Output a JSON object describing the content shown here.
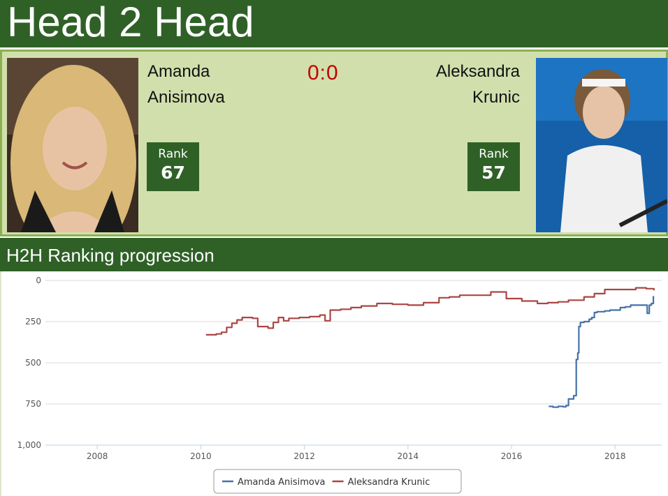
{
  "header": {
    "title": "Head 2 Head"
  },
  "players": {
    "left": {
      "first_name": "Amanda",
      "last_name": "Anisimova",
      "rank_label": "Rank",
      "rank": "67"
    },
    "right": {
      "first_name": "Aleksandra",
      "last_name": "Krunic",
      "rank_label": "Rank",
      "rank": "57"
    }
  },
  "score": "0:0",
  "section": {
    "title": "H2H Ranking progression"
  },
  "colors": {
    "header_bg": "#2f6127",
    "panel_bg": "#d1dfad",
    "panel_border": "#8bb04f",
    "score": "#c40000",
    "series_anisimova": "#4572a7",
    "series_krunic": "#aa4643"
  },
  "chart_data": {
    "type": "line",
    "title": "",
    "xlabel": "",
    "ylabel": "",
    "y_reversed": true,
    "ylim": [
      0,
      1000
    ],
    "xlim": [
      2007.0,
      2018.9
    ],
    "yticks": [
      0,
      250,
      500,
      750,
      1000
    ],
    "ytick_labels": [
      "0",
      "250",
      "500",
      "750",
      "1,000"
    ],
    "xticks": [
      2008,
      2010,
      2012,
      2014,
      2016,
      2018
    ],
    "xtick_labels": [
      "2008",
      "2010",
      "2012",
      "2014",
      "2016",
      "2018"
    ],
    "grid": "horizontal",
    "legend": "bottom-center",
    "series": [
      {
        "name": "Amanda Anisimova",
        "color": "#4572a7",
        "x": [
          2016.72,
          2016.8,
          2016.9,
          2017.0,
          2017.05,
          2017.1,
          2017.15,
          2017.2,
          2017.25,
          2017.28,
          2017.3,
          2017.33,
          2017.36,
          2017.4,
          2017.5,
          2017.55,
          2017.6,
          2017.65,
          2017.7,
          2017.8,
          2017.9,
          2018.0,
          2018.1,
          2018.2,
          2018.3,
          2018.4,
          2018.5,
          2018.58,
          2018.62,
          2018.66,
          2018.7,
          2018.74
        ],
        "y": [
          765,
          770,
          765,
          768,
          760,
          720,
          720,
          700,
          480,
          440,
          280,
          255,
          255,
          250,
          235,
          225,
          195,
          190,
          190,
          185,
          180,
          180,
          165,
          160,
          150,
          150,
          150,
          150,
          200,
          150,
          140,
          95
        ]
      },
      {
        "name": "Aleksandra Krunic",
        "color": "#aa4643",
        "x": [
          2010.1,
          2010.3,
          2010.4,
          2010.5,
          2010.6,
          2010.7,
          2010.8,
          2011.0,
          2011.1,
          2011.3,
          2011.4,
          2011.5,
          2011.6,
          2011.7,
          2011.9,
          2012.1,
          2012.3,
          2012.4,
          2012.5,
          2012.7,
          2012.9,
          2013.1,
          2013.4,
          2013.7,
          2014.0,
          2014.3,
          2014.6,
          2014.8,
          2015.0,
          2015.3,
          2015.6,
          2015.9,
          2016.2,
          2016.5,
          2016.7,
          2016.9,
          2017.1,
          2017.4,
          2017.6,
          2017.8,
          2018.1,
          2018.4,
          2018.6,
          2018.75
        ],
        "y": [
          330,
          325,
          315,
          285,
          260,
          240,
          225,
          230,
          280,
          290,
          255,
          225,
          245,
          230,
          225,
          220,
          210,
          245,
          180,
          175,
          165,
          155,
          140,
          145,
          150,
          135,
          105,
          100,
          90,
          90,
          70,
          110,
          125,
          140,
          135,
          130,
          120,
          100,
          80,
          55,
          55,
          45,
          50,
          60
        ]
      }
    ]
  }
}
